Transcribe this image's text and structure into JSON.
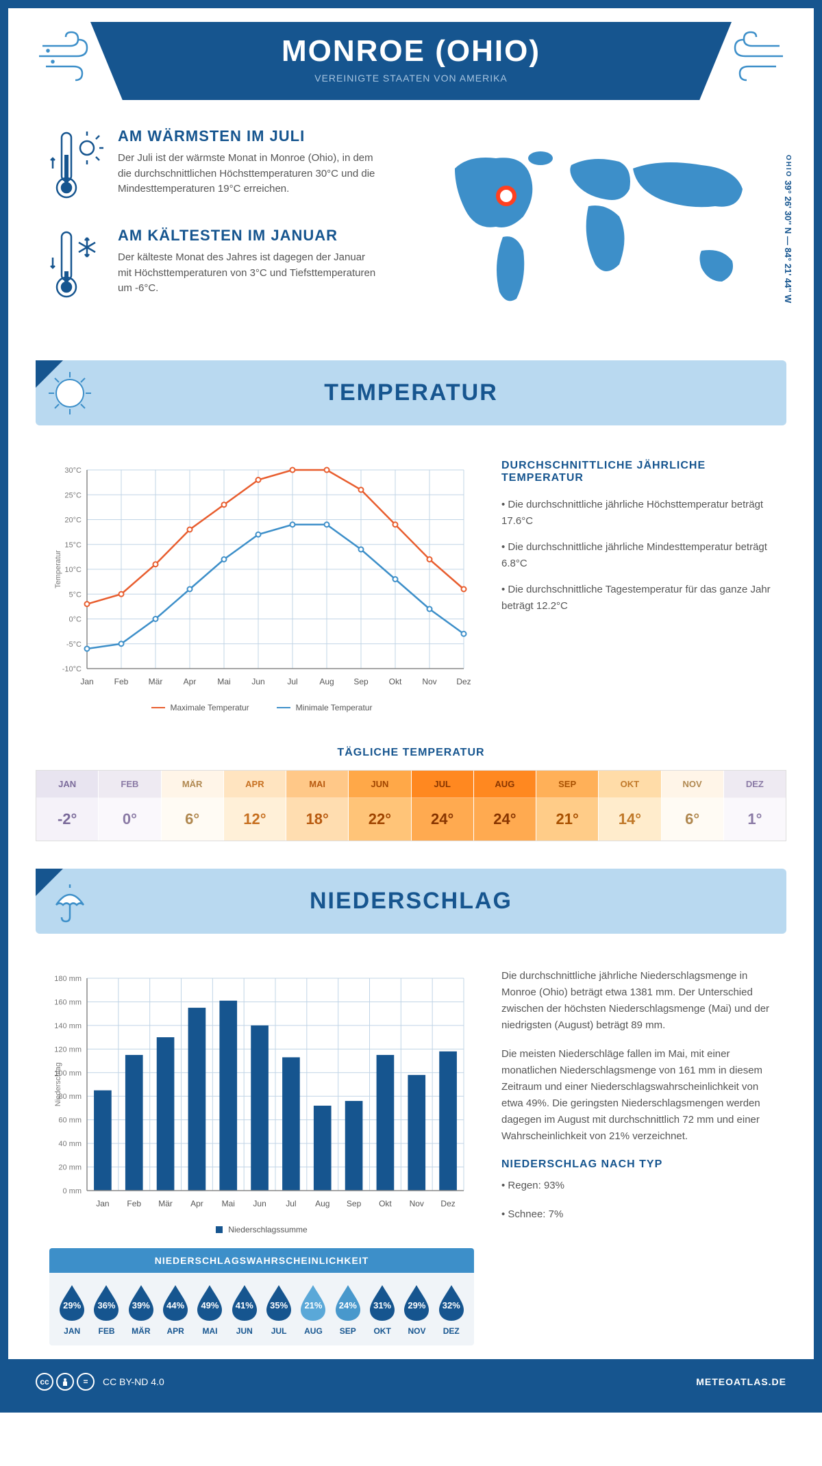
{
  "header": {
    "title": "MONROE (OHIO)",
    "subtitle": "VEREINIGTE STAATEN VON AMERIKA"
  },
  "coords": {
    "text": "39° 26' 30'' N — 84° 21' 44'' W",
    "label": "OHIO"
  },
  "intro": {
    "warm": {
      "title": "AM WÄRMSTEN IM JULI",
      "text": "Der Juli ist der wärmste Monat in Monroe (Ohio), in dem die durchschnittlichen Höchsttemperaturen 30°C und die Mindesttemperaturen 19°C erreichen."
    },
    "cold": {
      "title": "AM KÄLTESTEN IM JANUAR",
      "text": "Der kälteste Monat des Jahres ist dagegen der Januar mit Höchsttemperaturen von 3°C und Tiefsttemperaturen um -6°C."
    }
  },
  "temp_section": {
    "title": "TEMPERATUR"
  },
  "temp_chart": {
    "months": [
      "Jan",
      "Feb",
      "Mär",
      "Apr",
      "Mai",
      "Jun",
      "Jul",
      "Aug",
      "Sep",
      "Okt",
      "Nov",
      "Dez"
    ],
    "max_series": [
      3,
      5,
      11,
      18,
      23,
      28,
      30,
      30,
      26,
      19,
      12,
      6
    ],
    "min_series": [
      -6,
      -5,
      0,
      6,
      12,
      17,
      19,
      19,
      14,
      8,
      2,
      -3
    ],
    "max_color": "#e85d2e",
    "min_color": "#3d8fc9",
    "ylim": [
      -10,
      30
    ],
    "ytick_step": 5,
    "ylabel": "Temperatur",
    "grid_color": "#c0d4e6",
    "max_label": "Maximale Temperatur",
    "min_label": "Minimale Temperatur"
  },
  "temp_info": {
    "title": "DURCHSCHNITTLICHE JÄHRLICHE TEMPERATUR",
    "b1": "• Die durchschnittliche jährliche Höchsttemperatur beträgt 17.6°C",
    "b2": "• Die durchschnittliche jährliche Mindesttemperatur beträgt 6.8°C",
    "b3": "• Die durchschnittliche Tagestemperatur für das ganze Jahr beträgt 12.2°C"
  },
  "daily": {
    "title": "TÄGLICHE TEMPERATUR",
    "cells": [
      {
        "m": "JAN",
        "v": "-2°",
        "bg_m": "#e8e4f0",
        "bg_v": "#f5f2f9",
        "fg": "#7a6a9a"
      },
      {
        "m": "FEB",
        "v": "0°",
        "bg_m": "#eeeaf2",
        "bg_v": "#faf8fc",
        "fg": "#8a7aa5"
      },
      {
        "m": "MÄR",
        "v": "6°",
        "bg_m": "#fff5e8",
        "bg_v": "#fffbf4",
        "fg": "#b08850"
      },
      {
        "m": "APR",
        "v": "12°",
        "bg_m": "#ffe4c0",
        "bg_v": "#fff0d8",
        "fg": "#c77020"
      },
      {
        "m": "MAI",
        "v": "18°",
        "bg_m": "#ffc888",
        "bg_v": "#ffddb0",
        "fg": "#b85a10"
      },
      {
        "m": "JUN",
        "v": "22°",
        "bg_m": "#ffa848",
        "bg_v": "#ffc478",
        "fg": "#a04500"
      },
      {
        "m": "JUL",
        "v": "24°",
        "bg_m": "#ff8820",
        "bg_v": "#ffaa50",
        "fg": "#883500"
      },
      {
        "m": "AUG",
        "v": "24°",
        "bg_m": "#ff8820",
        "bg_v": "#ffaa50",
        "fg": "#883500"
      },
      {
        "m": "SEP",
        "v": "21°",
        "bg_m": "#ffb058",
        "bg_v": "#ffcc88",
        "fg": "#a85000"
      },
      {
        "m": "OKT",
        "v": "14°",
        "bg_m": "#ffdca8",
        "bg_v": "#ffeccc",
        "fg": "#c07828"
      },
      {
        "m": "NOV",
        "v": "6°",
        "bg_m": "#fff5e8",
        "bg_v": "#fffbf4",
        "fg": "#b08850"
      },
      {
        "m": "DEZ",
        "v": "1°",
        "bg_m": "#eeeaf2",
        "bg_v": "#faf8fc",
        "fg": "#8a7aa5"
      }
    ]
  },
  "precip_section": {
    "title": "NIEDERSCHLAG"
  },
  "precip_chart": {
    "months": [
      "Jan",
      "Feb",
      "Mär",
      "Apr",
      "Mai",
      "Jun",
      "Jul",
      "Aug",
      "Sep",
      "Okt",
      "Nov",
      "Dez"
    ],
    "values": [
      85,
      115,
      130,
      155,
      161,
      140,
      113,
      72,
      76,
      115,
      98,
      118
    ],
    "bar_color": "#16558f",
    "ylim": [
      0,
      180
    ],
    "ytick_step": 20,
    "ylabel": "Niederschlag",
    "grid_color": "#c0d4e6",
    "legend": "Niederschlagssumme"
  },
  "precip_text": {
    "p1": "Die durchschnittliche jährliche Niederschlagsmenge in Monroe (Ohio) beträgt etwa 1381 mm. Der Unterschied zwischen der höchsten Niederschlagsmenge (Mai) und der niedrigsten (August) beträgt 89 mm.",
    "p2": "Die meisten Niederschläge fallen im Mai, mit einer monatlichen Niederschlagsmenge von 161 mm in diesem Zeitraum und einer Niederschlagswahrscheinlichkeit von etwa 49%. Die geringsten Niederschlagsmengen werden dagegen im August mit durchschnittlich 72 mm und einer Wahrscheinlichkeit von 21% verzeichnet.",
    "type_title": "NIEDERSCHLAG NACH TYP",
    "type1": "• Regen: 93%",
    "type2": "• Schnee: 7%"
  },
  "prob": {
    "title": "NIEDERSCHLAGSWAHRSCHEINLICHKEIT",
    "cells": [
      {
        "m": "JAN",
        "v": "29%",
        "c": "#16558f"
      },
      {
        "m": "FEB",
        "v": "36%",
        "c": "#16558f"
      },
      {
        "m": "MÄR",
        "v": "39%",
        "c": "#16558f"
      },
      {
        "m": "APR",
        "v": "44%",
        "c": "#16558f"
      },
      {
        "m": "MAI",
        "v": "49%",
        "c": "#16558f"
      },
      {
        "m": "JUN",
        "v": "41%",
        "c": "#16558f"
      },
      {
        "m": "JUL",
        "v": "35%",
        "c": "#16558f"
      },
      {
        "m": "AUG",
        "v": "21%",
        "c": "#5aa8d8"
      },
      {
        "m": "SEP",
        "v": "24%",
        "c": "#4898cc"
      },
      {
        "m": "OKT",
        "v": "31%",
        "c": "#16558f"
      },
      {
        "m": "NOV",
        "v": "29%",
        "c": "#16558f"
      },
      {
        "m": "DEZ",
        "v": "32%",
        "c": "#16558f"
      }
    ]
  },
  "footer": {
    "license": "CC BY-ND 4.0",
    "site": "METEOATLAS.DE"
  },
  "colors": {
    "brand": "#16558f",
    "lightblue": "#b9d9f0"
  }
}
